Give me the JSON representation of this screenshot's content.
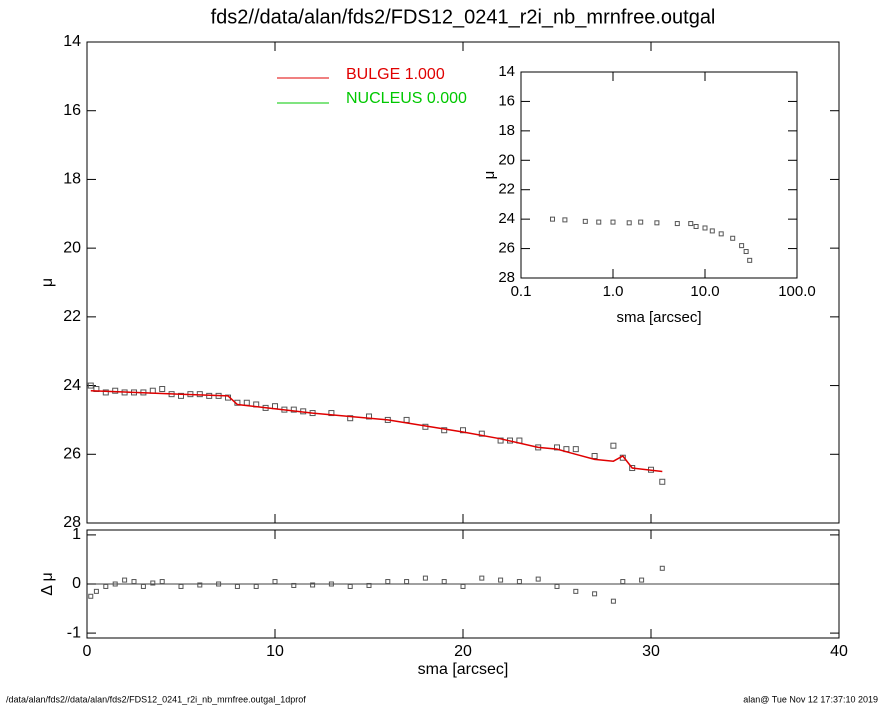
{
  "title": "fds2//data/alan/fds2/FDS12_0241_r2i_nb_mrnfree.outgal",
  "footer": {
    "left": "/data/alan/fds2//data/alan/fds2/FDS12_0241_r2i_nb_mrnfree.outgal_1dprof",
    "right": "alan@  Tue Nov 12 17:37:10 2019"
  },
  "chart_data": [
    {
      "type": "scatter",
      "ylabel": "μ",
      "ylim": [
        14,
        28
      ],
      "y_inverted": true,
      "xlim": [
        0,
        40
      ],
      "yticks": [
        14,
        16,
        18,
        20,
        22,
        24,
        26,
        28
      ],
      "points": {
        "color": "#555555",
        "x": [
          0.2,
          0.5,
          1,
          1.5,
          2,
          2.5,
          3,
          3.5,
          4,
          4.5,
          5,
          5.5,
          6,
          6.5,
          7,
          7.5,
          8,
          8.5,
          9,
          9.5,
          10,
          10.5,
          11,
          11.5,
          12,
          13,
          14,
          15,
          16,
          17,
          18,
          19,
          20,
          21,
          22,
          22.5,
          23,
          24,
          25,
          25.5,
          26,
          27,
          28,
          28.5,
          29,
          30,
          30.6
        ],
        "values": [
          24.0,
          24.1,
          24.2,
          24.15,
          24.2,
          24.2,
          24.2,
          24.15,
          24.1,
          24.25,
          24.3,
          24.25,
          24.25,
          24.3,
          24.3,
          24.35,
          24.5,
          24.5,
          24.55,
          24.65,
          24.6,
          24.7,
          24.7,
          24.75,
          24.8,
          24.8,
          24.95,
          24.9,
          25.0,
          25.0,
          25.2,
          25.3,
          25.3,
          25.4,
          25.6,
          25.6,
          25.6,
          25.8,
          25.8,
          25.85,
          25.85,
          26.05,
          25.75,
          26.1,
          26.4,
          26.45,
          26.8
        ]
      },
      "model": {
        "name": "BULGE  1.000",
        "color": "#e00000",
        "x": [
          0.2,
          5,
          7.5,
          8,
          12,
          16,
          20,
          22,
          24,
          25,
          26,
          27,
          28,
          28.5,
          29,
          30.6
        ],
        "values": [
          24.15,
          24.25,
          24.3,
          24.55,
          24.8,
          25.0,
          25.35,
          25.55,
          25.8,
          25.85,
          26.0,
          26.15,
          26.2,
          26.05,
          26.4,
          26.5
        ]
      },
      "nucleus": {
        "name": "NUCLEUS  0.000",
        "color": "#00c800"
      }
    },
    {
      "type": "scatter",
      "ylabel": "Δ μ",
      "xlabel": "sma [arcsec]",
      "xlim": [
        0,
        40
      ],
      "ylim": [
        -1.1,
        1.1
      ],
      "xticks": [
        0,
        10,
        20,
        30,
        40
      ],
      "yticks": [
        -1,
        0,
        1
      ],
      "points": {
        "color": "#555555",
        "x": [
          0.2,
          0.5,
          1,
          1.5,
          2,
          2.5,
          3,
          3.5,
          4,
          5,
          6,
          7,
          8,
          9,
          10,
          11,
          12,
          13,
          14,
          15,
          16,
          17,
          18,
          19,
          20,
          21,
          22,
          23,
          24,
          25,
          26,
          27,
          28,
          28.5,
          29.5,
          30.6
        ],
        "values": [
          -0.25,
          -0.15,
          -0.05,
          0.0,
          0.08,
          0.05,
          -0.05,
          0.02,
          0.05,
          -0.05,
          -0.02,
          0.0,
          -0.05,
          -0.05,
          0.05,
          -0.03,
          -0.02,
          0.0,
          -0.05,
          -0.03,
          0.05,
          0.05,
          0.12,
          0.05,
          -0.05,
          0.12,
          0.08,
          0.05,
          0.1,
          -0.05,
          -0.15,
          -0.2,
          -0.35,
          0.05,
          0.08,
          0.32
        ]
      }
    },
    {
      "type": "scatter",
      "ylabel": "μ",
      "xlabel": "sma [arcsec]",
      "xscale": "log",
      "xlim": [
        0.1,
        100
      ],
      "ylim": [
        14,
        28
      ],
      "y_inverted": true,
      "xticks": [
        0.1,
        {
          "value": 1,
          "label": "1.0"
        },
        {
          "value": 10,
          "label": "10.0"
        },
        {
          "value": 100,
          "label": "100.0"
        }
      ],
      "yticks": [
        14,
        16,
        18,
        20,
        22,
        24,
        26,
        28
      ],
      "points": {
        "color": "#555555",
        "x": [
          0.22,
          0.3,
          0.5,
          0.7,
          1,
          1.5,
          2,
          3,
          5,
          7,
          8,
          10,
          12,
          15,
          20,
          25,
          28,
          30.6
        ],
        "values": [
          24.0,
          24.05,
          24.15,
          24.2,
          24.2,
          24.25,
          24.2,
          24.25,
          24.3,
          24.3,
          24.5,
          24.6,
          24.8,
          25.0,
          25.3,
          25.8,
          26.2,
          26.8
        ]
      }
    }
  ]
}
